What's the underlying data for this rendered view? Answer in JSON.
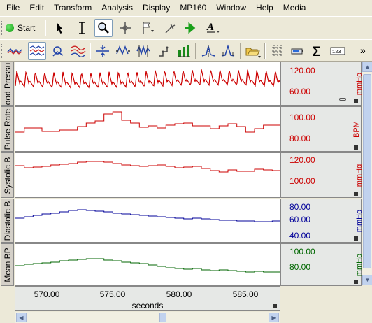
{
  "menu": [
    "File",
    "Edit",
    "Transform",
    "Analysis",
    "Display",
    "MP160",
    "Window",
    "Help",
    "Media"
  ],
  "toolbar": {
    "start_label": "Start",
    "more_glyph": "»"
  },
  "icons": {
    "tb1": [
      "arrow-pointer-icon",
      "ibeam-cursor-icon",
      "zoom-icon",
      "crosshair-icon",
      "flag-icon",
      "dart-icon",
      "arrow-right-icon",
      "text-annotation-icon"
    ],
    "tb2": [
      "waveform-icon",
      "stacked-waves-icon",
      "overlap-icon",
      "multi-waves-icon",
      "compress-vertical-icon",
      "expand-horizontal-icon",
      "cycle-detector-icon",
      "step-icon",
      "bar-chart-icon",
      "peak-icon",
      "peak-detect-icon",
      "open-folder-icon",
      "grid-icon",
      "battery-icon",
      "sum-icon",
      "digital-readout-icon"
    ]
  },
  "channels": [
    {
      "label": "ood Pressu",
      "color": "#cc0000",
      "scale_top": "120.00",
      "scale_bottom": "60.00",
      "unit": "mmHg"
    },
    {
      "label": "Pulse Rate",
      "color": "#cc0000",
      "scale_top": "100.00",
      "scale_bottom": "80.00",
      "unit": "BPM"
    },
    {
      "label": "Systolic B",
      "color": "#cc0000",
      "scale_top": "120.00",
      "scale_bottom": "100.00",
      "unit": "mmHg"
    },
    {
      "label": "Diastolic B",
      "color": "#000099",
      "scale_top": "80.00",
      "scale_mid": "60.00",
      "scale_bottom": "40.00",
      "unit": "mmHg"
    },
    {
      "label": "Mean BP",
      "color": "#006600",
      "scale_top": "100.00",
      "scale_bottom": "80.00",
      "unit": "mmHg"
    }
  ],
  "time_axis": {
    "ticks": [
      "570.00",
      "575.00",
      "580.00",
      "585.00"
    ],
    "title": "seconds"
  }
}
